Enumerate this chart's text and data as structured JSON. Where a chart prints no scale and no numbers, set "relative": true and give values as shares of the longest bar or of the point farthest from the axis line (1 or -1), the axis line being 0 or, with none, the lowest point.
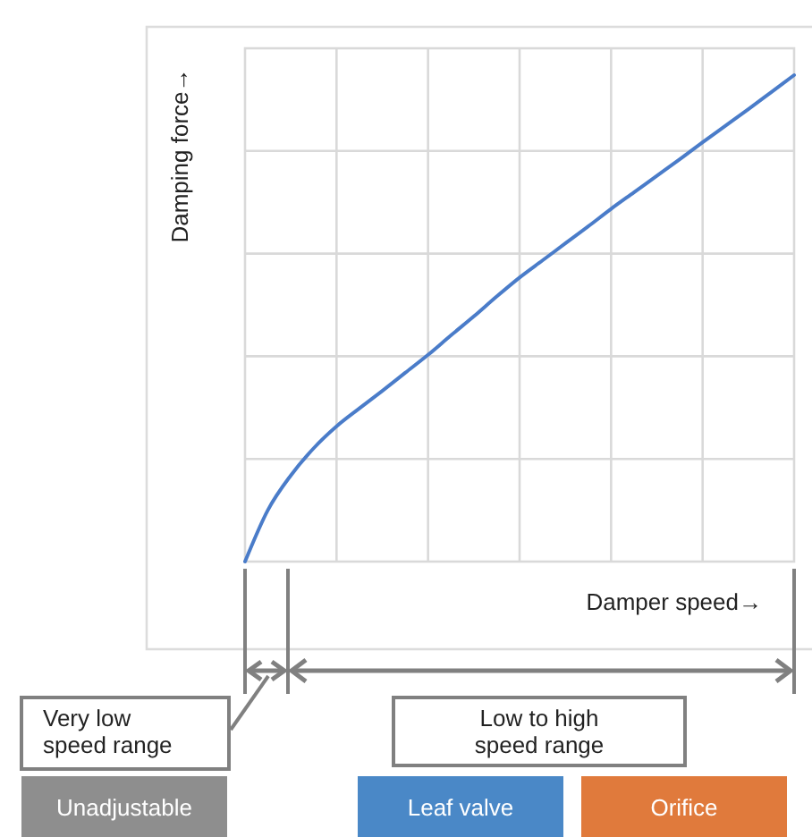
{
  "chart_data": {
    "type": "line",
    "relative": true,
    "xlabel": "Damper speed→",
    "ylabel": "Damping force→",
    "grid": true,
    "categories": [
      null,
      null,
      null,
      null,
      null,
      null,
      null,
      null,
      null,
      null,
      null,
      null,
      null,
      null,
      null,
      null,
      null,
      null,
      null,
      null,
      null,
      null,
      null,
      null,
      null
    ],
    "series": [
      {
        "color": "#4a7cc9",
        "values": [
          0,
          0.106,
          0.177,
          0.233,
          0.278,
          0.315,
          0.351,
          0.388,
          0.425,
          0.465,
          0.504,
          0.545,
          0.584,
          0.619,
          0.654,
          0.689,
          0.725,
          0.759,
          0.793,
          0.827,
          0.862,
          0.896,
          0.93,
          0.965,
          1
        ]
      }
    ],
    "annotations": [
      "Very low speed range",
      "Low to high speed range",
      "Unadjustable",
      "Leaf valve",
      "Orifice"
    ]
  }
}
